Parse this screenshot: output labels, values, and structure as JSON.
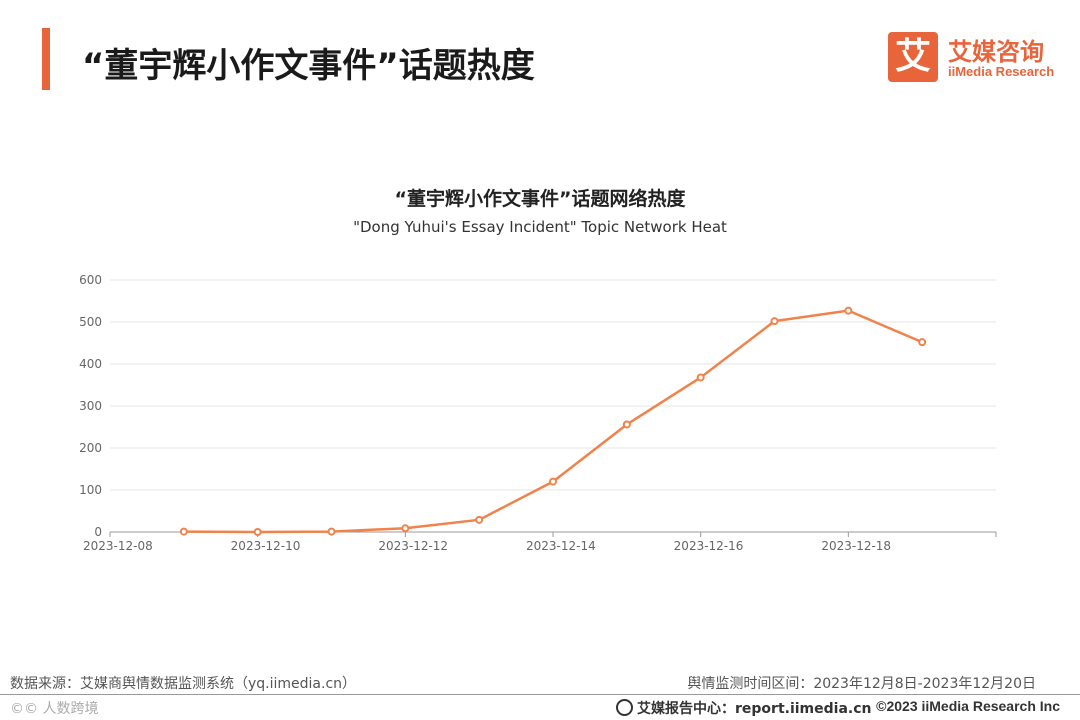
{
  "header": {
    "title": "“董宇辉小作文事件”话题热度"
  },
  "logo": {
    "mark": "艾",
    "name_cn": "艾媒咨询",
    "name_en": "iiMedia Research"
  },
  "chart_data": {
    "type": "line",
    "title": "“董宇辉小作文事件”话题网络热度",
    "subtitle": "\"Dong Yuhui's Essay Incident\" Topic Network Heat",
    "x": [
      "2023-12-08",
      "2023-12-09",
      "2023-12-10",
      "2023-12-11",
      "2023-12-12",
      "2023-12-13",
      "2023-12-14",
      "2023-12-15",
      "2023-12-16",
      "2023-12-17",
      "2023-12-18",
      "2023-12-19",
      "2023-12-20"
    ],
    "series": [
      {
        "values": [
          null,
          1,
          0,
          1,
          9,
          29,
          120,
          256,
          368,
          502,
          527,
          452,
          null
        ]
      }
    ],
    "x_tick_labels": [
      "2023-12-08",
      "2023-12-10",
      "2023-12-12",
      "2023-12-14",
      "2023-12-16",
      "2023-12-18"
    ],
    "y_ticks": [
      0,
      100,
      200,
      300,
      400,
      500,
      600
    ],
    "ylim": [
      0,
      600
    ],
    "xlabel": "",
    "ylabel": "",
    "grid": true,
    "line_color": "#f0824a"
  },
  "footer": {
    "source": "数据来源：艾媒商舆情数据监测系统（yq.iimedia.cn）",
    "period": "舆情监测时间区间：2023年12月8日-2023年12月20日",
    "watermark": "©© 人数跨境",
    "report": "艾媒报告中心：report.iimedia.cn",
    "copyright": "©2023  iiMedia Research  Inc"
  }
}
